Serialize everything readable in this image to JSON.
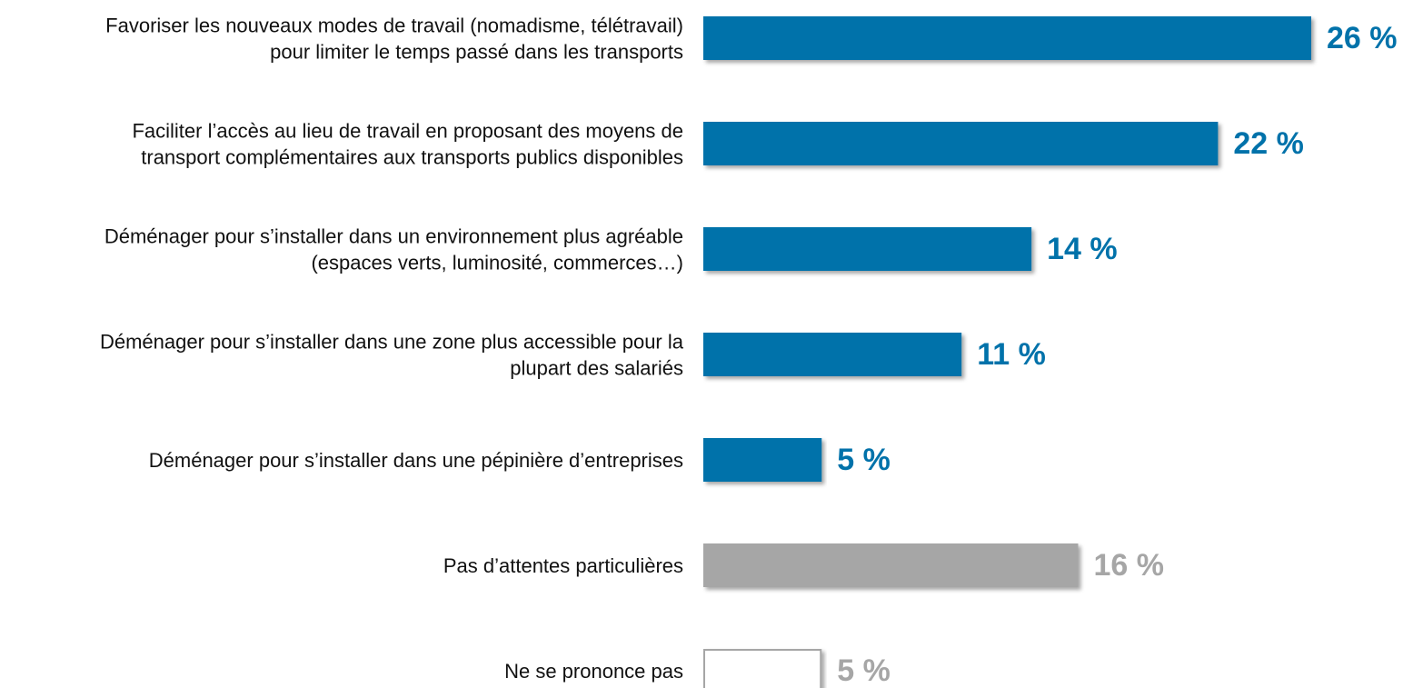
{
  "chart_data": {
    "type": "barh",
    "categories": [
      "Favoriser les nouveaux modes de travail (nomadisme, télétravail)\npour limiter le temps passé dans les transports",
      "Faciliter l’accès au lieu de travail en proposant des moyens de\ntransport complémentaires aux transports publics disponibles",
      "Déménager pour s’installer dans un environnement plus agréable\n(espaces verts, luminosité, commerces…)",
      "Déménager pour s’installer dans une zone plus accessible pour la\nplupart des salariés",
      "Déménager pour s’installer dans une pépinière d’entreprises",
      "Pas d’attentes particulières",
      "Ne se prononce pas"
    ],
    "values": [
      26,
      22,
      14,
      11,
      5,
      16,
      5
    ],
    "value_labels": [
      "26 %",
      "22 %",
      "14 %",
      "11 %",
      "5 %",
      "16 %",
      "5 %"
    ],
    "colors": [
      "#0072aa",
      "#0072aa",
      "#0072aa",
      "#0072aa",
      "#0072aa",
      "#a6a6a6",
      "#ffffff"
    ],
    "label_colors": [
      "#0072aa",
      "#0072aa",
      "#0072aa",
      "#0072aa",
      "#0072aa",
      "#a6a6a6",
      "#a6a6a6"
    ]
  }
}
